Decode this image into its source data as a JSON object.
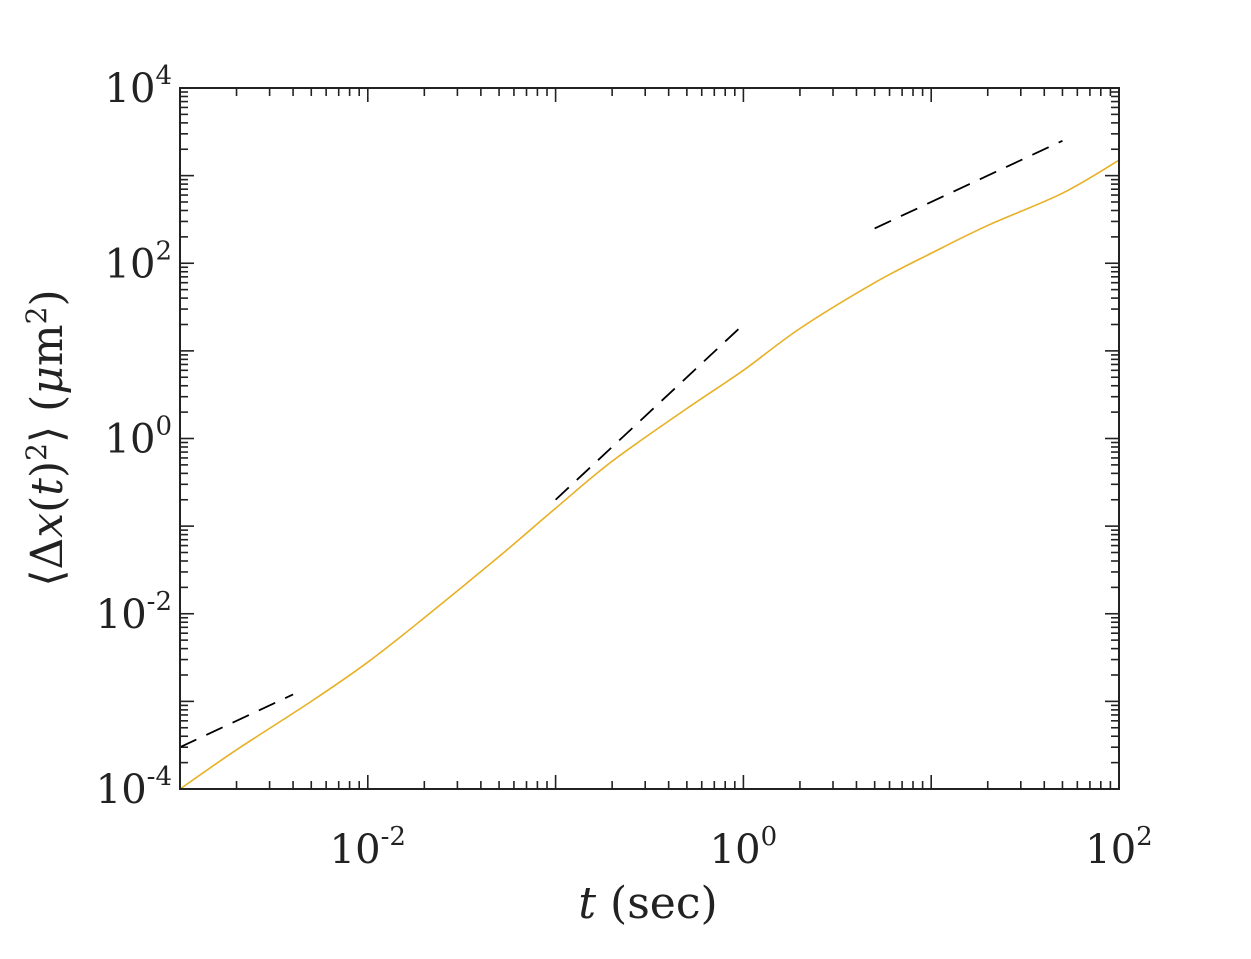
{
  "chart_data": {
    "type": "line",
    "title": "",
    "xlabel": {
      "symbol": "t",
      "unit": "(sec)"
    },
    "ylabel": {
      "prefix": "⟨Δ",
      "var": "x",
      "paren_open": "(",
      "t": "t",
      "paren_close": ")",
      "power": "2",
      "suffix": "⟩",
      "unit_open": " (",
      "mu": "μ",
      "m": "m",
      "unit_power": "2",
      "unit_close": ")"
    },
    "x_scale": "log",
    "y_scale": "log",
    "xlim": [
      0.001,
      100
    ],
    "ylim": [
      0.0001,
      10000
    ],
    "x_ticks": [
      {
        "base": "10",
        "exp": "-2",
        "value": 0.01
      },
      {
        "base": "10",
        "exp": "0",
        "value": 1
      },
      {
        "base": "10",
        "exp": "2",
        "value": 100
      }
    ],
    "y_ticks": [
      {
        "base": "10",
        "exp": "-4",
        "value": 0.0001
      },
      {
        "base": "10",
        "exp": "-2",
        "value": 0.01
      },
      {
        "base": "10",
        "exp": "0",
        "value": 1
      },
      {
        "base": "10",
        "exp": "2",
        "value": 100
      },
      {
        "base": "10",
        "exp": "4",
        "value": 10000
      }
    ],
    "grid": false,
    "series": [
      {
        "style": "solid",
        "color": "#e8b024",
        "x": [
          0.001,
          0.002,
          0.005,
          0.01,
          0.02,
          0.05,
          0.1,
          0.2,
          0.5,
          1.0,
          2.0,
          5.0,
          10.0,
          20.0,
          50.0,
          100
        ],
        "y": [
          0.0001,
          0.00028,
          0.001,
          0.0028,
          0.009,
          0.045,
          0.16,
          0.55,
          2.2,
          6.0,
          18.0,
          60.0,
          130,
          270,
          630,
          1500
        ]
      },
      {
        "style": "dashed",
        "color": "#000000",
        "x": [
          0.001,
          0.004
        ],
        "y": [
          0.0003,
          0.0012
        ]
      },
      {
        "style": "dashed",
        "color": "#000000",
        "x": [
          0.1,
          1.0
        ],
        "y": [
          0.2,
          20.0
        ]
      },
      {
        "style": "dashed",
        "color": "#000000",
        "x": [
          5.0,
          50.0
        ],
        "y": [
          250,
          2500
        ]
      }
    ]
  }
}
